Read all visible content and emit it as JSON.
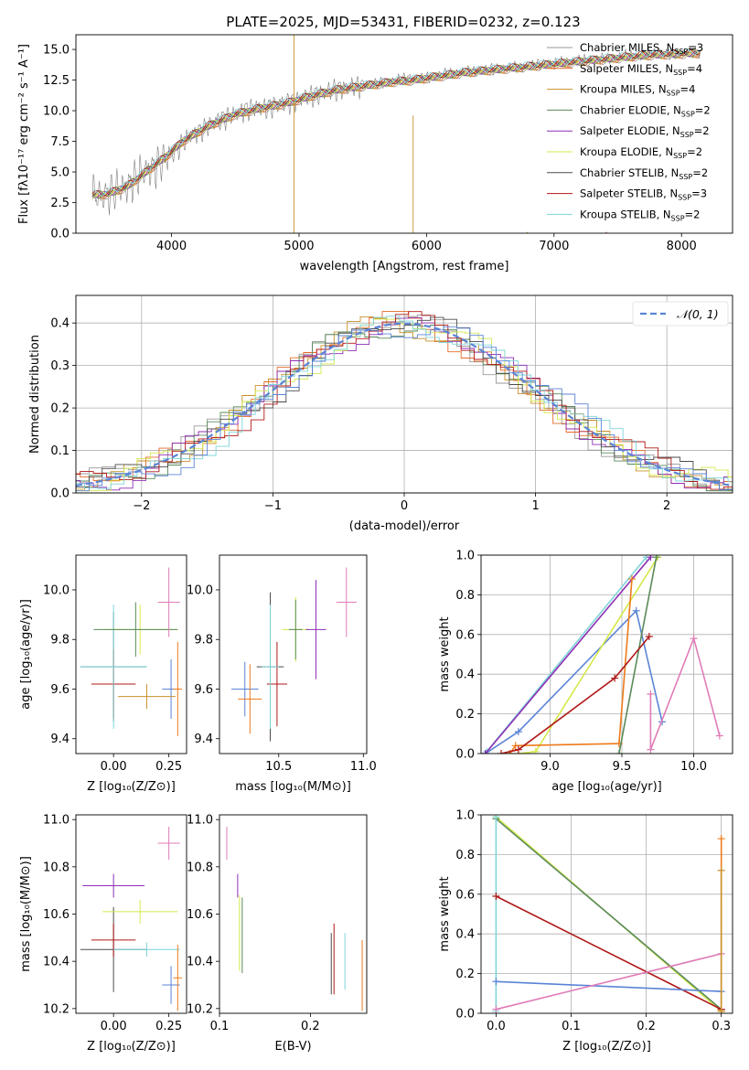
{
  "figure": {
    "title": "PLATE=2025, MJD=53431, FIBERID=0232, z=0.123"
  },
  "colors": {
    "chabrier_miles": "#9a9a9a",
    "salpeter_miles": "#e36b2a",
    "kroupa_miles": "#c9902a",
    "chabrier_elodie": "#5a8a5a",
    "salpeter_elodie": "#8e2fb5",
    "kroupa_elodie": "#d4e84a",
    "chabrier_stelib": "#4b4b4b",
    "salpeter_stelib": "#b01818",
    "kroupa_stelib": "#7fd4d8",
    "blue": "#5b84d6",
    "pink": "#e07cb8",
    "orange": "#ee7a1a",
    "obs_spectrum": "#808080"
  },
  "chart_data": [
    {
      "id": "spectrum",
      "type": "line",
      "title": "PLATE=2025, MJD=53431, FIBERID=0232, z=0.123",
      "xlabel": "wavelength [Angstrom, rest frame]",
      "ylabel": "Flux [fλ10⁻¹⁷ erg cm⁻² s⁻¹ A⁻¹]",
      "xlim": [
        3250,
        8400
      ],
      "ylim": [
        0,
        16.2
      ],
      "xticks": [
        "4000",
        "5000",
        "6000",
        "7000",
        "8000"
      ],
      "xtick_values": [
        4000,
        5000,
        6000,
        7000,
        8000
      ],
      "yticks": [
        "0.0",
        "2.5",
        "5.0",
        "7.5",
        "10.0",
        "12.5",
        "15.0"
      ],
      "ytick_values": [
        0,
        2.5,
        5,
        7.5,
        10,
        12.5,
        15
      ],
      "grid": false,
      "legend_position": "right",
      "observed_x": [
        3380,
        3450,
        3550,
        3650,
        3750,
        3850,
        3950,
        4050,
        4150,
        4250,
        4350,
        4450,
        4550,
        4650,
        4750,
        4850,
        4950,
        5050,
        5150,
        5250,
        5350,
        5450,
        5550,
        5650,
        5750,
        5850,
        5950,
        6050,
        6150,
        6250,
        6350,
        6450,
        6550,
        6650,
        6750,
        6850,
        6950,
        7050,
        7150,
        7250,
        7350,
        7450,
        7550,
        7650,
        7750,
        7850,
        7950,
        8050,
        8150
      ],
      "observed_y": [
        3.2,
        3.0,
        3.5,
        3.8,
        4.8,
        5.3,
        6.0,
        7.0,
        8.0,
        8.5,
        9.2,
        9.6,
        10.0,
        10.3,
        10.3,
        10.6,
        10.8,
        11.2,
        11.4,
        11.7,
        11.9,
        12.0,
        12.2,
        12.3,
        12.5,
        12.7,
        12.6,
        12.8,
        13.0,
        13.1,
        13.2,
        13.3,
        13.4,
        13.5,
        13.5,
        13.7,
        13.8,
        13.9,
        14.0,
        14.1,
        14.2,
        14.2,
        14.5,
        14.3,
        14.6,
        14.7,
        14.5,
        14.8,
        14.6
      ],
      "model_x": [
        3380,
        3500,
        3650,
        3800,
        3950,
        4100,
        4300,
        4500,
        4700,
        4900,
        5100,
        5300,
        5500,
        5700,
        5900,
        6100,
        6300,
        6500,
        6700,
        6900,
        7100,
        7300,
        7500,
        7700,
        7900,
        8150
      ],
      "model_y": [
        3.1,
        3.2,
        3.8,
        5.0,
        6.2,
        7.6,
        8.8,
        9.7,
        10.2,
        10.6,
        11.2,
        11.7,
        12.0,
        12.3,
        12.5,
        12.8,
        13.1,
        13.3,
        13.5,
        13.7,
        13.9,
        14.1,
        14.3,
        14.5,
        14.6,
        14.7
      ],
      "legend": [
        {
          "label": "Chabrier MILES, N",
          "sub": "SSP",
          "tail": "=3",
          "color_key": "chabrier_miles"
        },
        {
          "label": "Salpeter MILES, N",
          "sub": "SSP",
          "tail": "=4",
          "color_key": "salpeter_miles"
        },
        {
          "label": "Kroupa MILES, N",
          "sub": "SSP",
          "tail": "=4",
          "color_key": "kroupa_miles"
        },
        {
          "label": "Chabrier ELODIE, N",
          "sub": "SSP",
          "tail": "=2",
          "color_key": "chabrier_elodie"
        },
        {
          "label": "Salpeter ELODIE, N",
          "sub": "SSP",
          "tail": "=2",
          "color_key": "salpeter_elodie"
        },
        {
          "label": "Kroupa ELODIE, N",
          "sub": "SSP",
          "tail": "=2",
          "color_key": "kroupa_elodie"
        },
        {
          "label": "Chabrier STELIB, N",
          "sub": "SSP",
          "tail": "=2",
          "color_key": "chabrier_stelib"
        },
        {
          "label": "Salpeter STELIB, N",
          "sub": "SSP",
          "tail": "=3",
          "color_key": "salpeter_stelib"
        },
        {
          "label": "Kroupa STELIB, N",
          "sub": "SSP",
          "tail": "=2",
          "color_key": "kroupa_stelib"
        }
      ]
    },
    {
      "id": "residuals",
      "type": "line",
      "xlabel": "(data-model)/error",
      "ylabel": "Normed distribution",
      "xlim": [
        -2.5,
        2.5
      ],
      "ylim": [
        0,
        0.465
      ],
      "xticks": [
        "−2",
        "−1",
        "0",
        "1",
        "2"
      ],
      "xtick_values": [
        -2,
        -1,
        0,
        1,
        2
      ],
      "yticks": [
        "0.0",
        "0.1",
        "0.2",
        "0.3",
        "0.4"
      ],
      "ytick_values": [
        0,
        0.1,
        0.2,
        0.3,
        0.4
      ],
      "grid": true,
      "legend_position": "top-right",
      "normal_label": "𝒩(0, 1)",
      "normal_color_key": "blue",
      "histogram_bin_width": 0.1,
      "histogram_series_colors": [
        "chabrier_miles",
        "salpeter_miles",
        "kroupa_miles",
        "chabrier_elodie",
        "salpeter_elodie",
        "kroupa_elodie",
        "chabrier_stelib",
        "salpeter_stelib",
        "kroupa_stelib",
        "blue"
      ]
    },
    {
      "id": "age_vs_Z",
      "type": "scatter",
      "xlabel": "Z [log₁₀(Z/Z⊙)]",
      "ylabel": "age  [log₁₀(age/yr)]",
      "xlim": [
        -0.17,
        0.33
      ],
      "ylim": [
        9.34,
        10.14
      ],
      "xticks": [
        "0.00",
        "0.25"
      ],
      "xtick_values": [
        0,
        0.25
      ],
      "yticks": [
        "9.4",
        "9.6",
        "9.8",
        "10.0"
      ],
      "ytick_values": [
        9.4,
        9.6,
        9.8,
        10.0
      ],
      "grid": false,
      "points": [
        {
          "x": 0.0,
          "y": 9.69,
          "xerr": 0.15,
          "yerr": 0.22,
          "color_key": "chabrier_stelib"
        },
        {
          "x": 0.0,
          "y": 9.62,
          "xerr": 0.1,
          "yerr": 0.14,
          "color_key": "salpeter_stelib"
        },
        {
          "x": 0.0,
          "y": 9.69,
          "xerr": 0.15,
          "yerr": 0.25,
          "color_key": "kroupa_stelib"
        },
        {
          "x": 0.12,
          "y": 9.84,
          "xerr": 0.17,
          "yerr": 0.1,
          "color_key": "kroupa_elodie"
        },
        {
          "x": 0.1,
          "y": 9.84,
          "xerr": 0.19,
          "yerr": 0.11,
          "color_key": "chabrier_elodie"
        },
        {
          "x": 0.26,
          "y": 9.6,
          "xerr": 0.04,
          "yerr": 0.12,
          "color_key": "blue"
        },
        {
          "x": 0.25,
          "y": 9.95,
          "xerr": 0.05,
          "yerr": 0.14,
          "color_key": "pink"
        },
        {
          "x": 0.29,
          "y": 9.6,
          "xerr": 0.02,
          "yerr": 0.19,
          "color_key": "orange"
        },
        {
          "x": 0.15,
          "y": 9.57,
          "xerr": 0.13,
          "yerr": 0.05,
          "color_key": "kroupa_miles"
        }
      ]
    },
    {
      "id": "age_vs_mass",
      "type": "scatter",
      "xlabel": "mass [log₁₀(M/M⊙)]",
      "xlim": [
        10.15,
        11.02
      ],
      "ylim": [
        9.34,
        10.14
      ],
      "xticks": [
        "10.5",
        "11.0"
      ],
      "xtick_values": [
        10.5,
        11.0
      ],
      "yticks": [
        "9.4",
        "9.6",
        "9.8",
        "10.0"
      ],
      "ytick_values": [
        9.4,
        9.6,
        9.8,
        10.0
      ],
      "grid": false,
      "points": [
        {
          "x": 10.3,
          "y": 9.6,
          "xerr": 0.08,
          "yerr": 0.11,
          "color_key": "blue"
        },
        {
          "x": 10.33,
          "y": 9.56,
          "xerr": 0.07,
          "yerr": 0.14,
          "color_key": "orange"
        },
        {
          "x": 10.45,
          "y": 9.69,
          "xerr": 0.08,
          "yerr": 0.3,
          "color_key": "chabrier_stelib"
        },
        {
          "x": 10.49,
          "y": 9.62,
          "xerr": 0.06,
          "yerr": 0.17,
          "color_key": "salpeter_stelib"
        },
        {
          "x": 10.6,
          "y": 9.84,
          "xerr": 0.08,
          "yerr": 0.13,
          "color_key": "kroupa_elodie"
        },
        {
          "x": 10.6,
          "y": 9.84,
          "xerr": 0.04,
          "yerr": 0.12,
          "color_key": "chabrier_elodie"
        },
        {
          "x": 10.72,
          "y": 9.84,
          "xerr": 0.06,
          "yerr": 0.2,
          "color_key": "salpeter_elodie"
        },
        {
          "x": 10.9,
          "y": 9.95,
          "xerr": 0.06,
          "yerr": 0.14,
          "color_key": "pink"
        },
        {
          "x": 10.45,
          "y": 9.69,
          "xerr": 0.05,
          "yerr": 0.25,
          "color_key": "kroupa_stelib"
        }
      ]
    },
    {
      "id": "sfh_age",
      "type": "line",
      "xlabel": "age  [log₁₀(age/yr)]",
      "ylabel": "mass weight",
      "xlim": [
        8.52,
        10.27
      ],
      "ylim": [
        0,
        1.0
      ],
      "xticks": [
        "9.0",
        "9.5",
        "10.0"
      ],
      "xtick_values": [
        9.0,
        9.5,
        10.0
      ],
      "yticks": [
        "0.0",
        "0.2",
        "0.4",
        "0.6",
        "0.8",
        "1.0"
      ],
      "ytick_values": [
        0,
        0.2,
        0.4,
        0.6,
        0.8,
        1.0
      ],
      "grid": true,
      "series": [
        {
          "color_key": "kroupa_stelib",
          "x": [
            8.55,
            8.56,
            9.67
          ],
          "y": [
            0.0,
            0.01,
            0.99
          ]
        },
        {
          "color_key": "blue",
          "x": [
            8.55,
            8.78,
            9.6,
            9.78
          ],
          "y": [
            0.0,
            0.11,
            0.72,
            0.16
          ]
        },
        {
          "color_key": "salpeter_elodie",
          "x": [
            8.55,
            9.7
          ],
          "y": [
            0.0,
            0.99
          ]
        },
        {
          "color_key": "kroupa_elodie",
          "x": [
            8.78,
            8.9,
            9.75
          ],
          "y": [
            0.0,
            0.01,
            0.99
          ]
        },
        {
          "color_key": "orange",
          "x": [
            8.72,
            8.76,
            9.48,
            9.57
          ],
          "y": [
            0.0,
            0.04,
            0.05,
            0.88
          ]
        },
        {
          "color_key": "chabrier_elodie",
          "x": [
            9.48,
            9.74
          ],
          "y": [
            0.0,
            0.99
          ]
        },
        {
          "color_key": "salpeter_stelib",
          "x": [
            8.66,
            8.78,
            9.45,
            9.69
          ],
          "y": [
            0.0,
            0.02,
            0.38,
            0.59
          ]
        },
        {
          "color_key": "pink",
          "x": [
            9.7,
            9.7,
            10.0,
            10.18
          ],
          "y": [
            0.3,
            0.02,
            0.58,
            0.09
          ]
        }
      ]
    },
    {
      "id": "mass_vs_Z",
      "type": "scatter",
      "xlabel": "Z [log₁₀(Z/Z⊙)]",
      "ylabel": "mass [log₁₀(M/M⊙)]",
      "xlim": [
        -0.17,
        0.33
      ],
      "ylim": [
        10.18,
        11.02
      ],
      "xticks": [
        "0.00",
        "0.25"
      ],
      "xtick_values": [
        0,
        0.25
      ],
      "yticks": [
        "10.2",
        "10.4",
        "10.6",
        "10.8",
        "11.0"
      ],
      "ytick_values": [
        10.2,
        10.4,
        10.6,
        10.8,
        11.0
      ],
      "grid": false,
      "points": [
        {
          "x": 0.0,
          "y": 10.45,
          "xerr": 0.15,
          "yerr": 0.18,
          "color_key": "chabrier_stelib"
        },
        {
          "x": 0.0,
          "y": 10.49,
          "xerr": 0.1,
          "yerr": 0.07,
          "color_key": "salpeter_stelib"
        },
        {
          "x": 0.0,
          "y": 10.72,
          "xerr": 0.14,
          "yerr": 0.05,
          "color_key": "salpeter_elodie"
        },
        {
          "x": 0.12,
          "y": 10.61,
          "xerr": 0.17,
          "yerr": 0.05,
          "color_key": "kroupa_elodie"
        },
        {
          "x": 0.15,
          "y": 10.45,
          "xerr": 0.15,
          "yerr": 0.03,
          "color_key": "kroupa_stelib"
        },
        {
          "x": 0.25,
          "y": 10.9,
          "xerr": 0.05,
          "yerr": 0.07,
          "color_key": "pink"
        },
        {
          "x": 0.26,
          "y": 10.3,
          "xerr": 0.04,
          "yerr": 0.08,
          "color_key": "blue"
        },
        {
          "x": 0.29,
          "y": 10.33,
          "xerr": 0.02,
          "yerr": 0.14,
          "color_key": "orange"
        }
      ]
    },
    {
      "id": "mass_vs_ebv",
      "type": "scatter",
      "xlabel": "E(B-V)",
      "xlim": [
        0.1,
        0.262
      ],
      "ylim": [
        10.18,
        11.02
      ],
      "xticks": [
        "0.1",
        "0.2"
      ],
      "xtick_values": [
        0.1,
        0.2
      ],
      "yticks": [
        "10.2",
        "10.4",
        "10.6",
        "10.8",
        "11.0"
      ],
      "ytick_values": [
        10.2,
        10.4,
        10.6,
        10.8,
        11.0
      ],
      "grid": false,
      "points": [
        {
          "x": 0.108,
          "y": 10.9,
          "yerr": 0.07,
          "color_key": "pink"
        },
        {
          "x": 0.12,
          "y": 10.72,
          "yerr": 0.05,
          "color_key": "salpeter_elodie"
        },
        {
          "x": 0.122,
          "y": 10.52,
          "yerr": 0.16,
          "color_key": "kroupa_elodie"
        },
        {
          "x": 0.125,
          "y": 10.51,
          "yerr": 0.16,
          "color_key": "chabrier_elodie"
        },
        {
          "x": 0.223,
          "y": 10.39,
          "yerr": 0.13,
          "color_key": "chabrier_stelib"
        },
        {
          "x": 0.226,
          "y": 10.41,
          "yerr": 0.15,
          "color_key": "salpeter_stelib"
        },
        {
          "x": 0.238,
          "y": 10.4,
          "yerr": 0.12,
          "color_key": "kroupa_stelib"
        },
        {
          "x": 0.257,
          "y": 10.34,
          "yerr": 0.15,
          "color_key": "orange"
        }
      ]
    },
    {
      "id": "sfh_Z",
      "type": "line",
      "xlabel": "Z [log₁₀(Z/Z⊙)]",
      "ylabel": "mass weight",
      "xlim": [
        -0.02,
        0.315
      ],
      "ylim": [
        0,
        1.0
      ],
      "xticks": [
        "0.0",
        "0.1",
        "0.2",
        "0.3"
      ],
      "xtick_values": [
        0,
        0.1,
        0.2,
        0.3
      ],
      "yticks": [
        "0.0",
        "0.2",
        "0.4",
        "0.6",
        "0.8",
        "1.0"
      ],
      "ytick_values": [
        0,
        0.2,
        0.4,
        0.6,
        0.8,
        1.0
      ],
      "grid": true,
      "series": [
        {
          "color_key": "kroupa_elodie",
          "x": [
            0.0,
            0.3
          ],
          "y": [
            0.99,
            0.01
          ]
        },
        {
          "color_key": "chabrier_elodie",
          "x": [
            0.0,
            0.3
          ],
          "y": [
            0.98,
            0.02
          ]
        },
        {
          "color_key": "kroupa_stelib",
          "x": [
            0.0,
            0.0
          ],
          "y": [
            0.01,
            0.99
          ]
        },
        {
          "color_key": "salpeter_stelib",
          "x": [
            0.0,
            0.3
          ],
          "y": [
            0.59,
            0.02
          ]
        },
        {
          "color_key": "blue",
          "x": [
            0.0,
            0.3
          ],
          "y": [
            0.16,
            0.11
          ]
        },
        {
          "color_key": "pink",
          "x": [
            0.0,
            0.3
          ],
          "y": [
            0.02,
            0.3
          ]
        },
        {
          "color_key": "orange",
          "x": [
            0.3,
            0.3
          ],
          "y": [
            0.01,
            0.88
          ]
        },
        {
          "color_key": "kroupa_miles",
          "x": [
            0.3,
            0.3
          ],
          "y": [
            0.01,
            0.72
          ]
        }
      ]
    }
  ]
}
